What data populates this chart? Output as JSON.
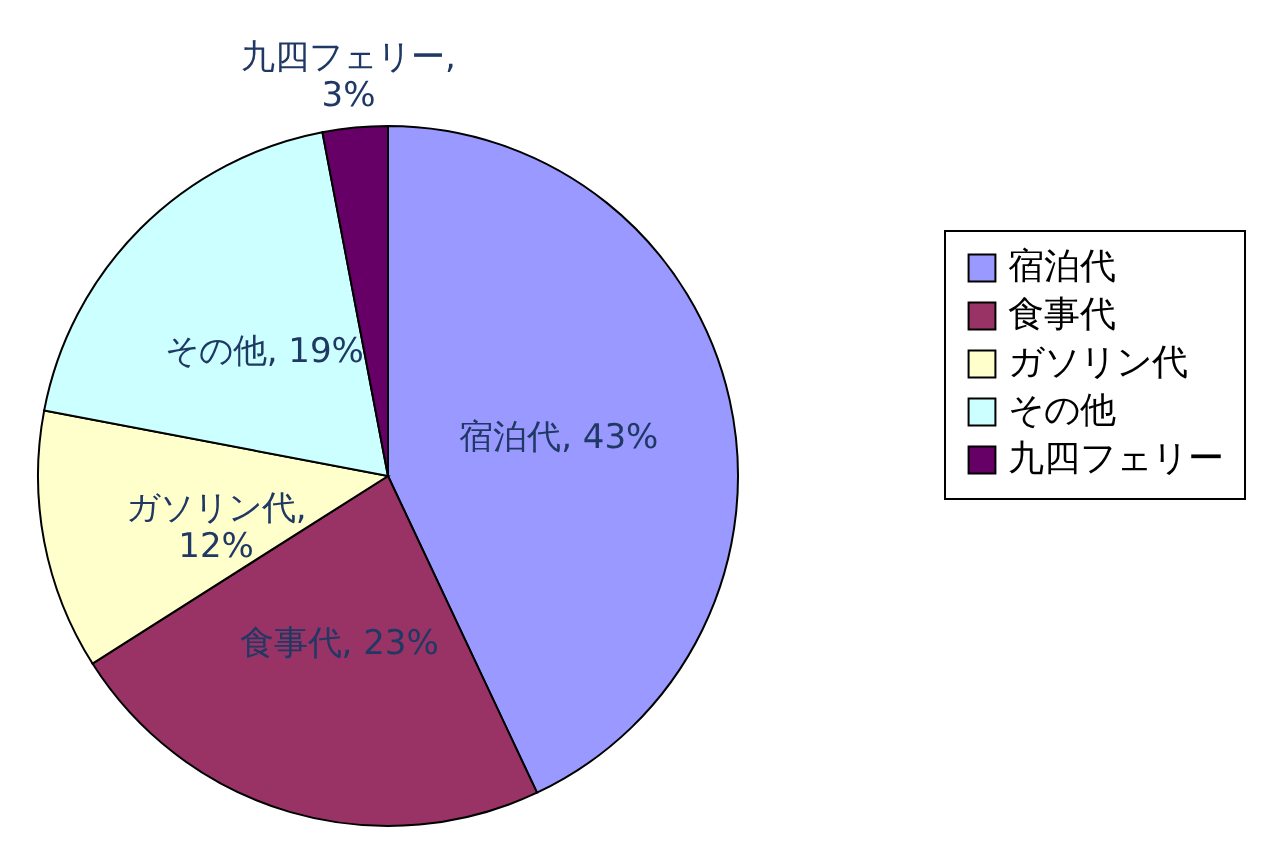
{
  "chart_data": {
    "type": "pie",
    "categories": [
      "宿泊代",
      "食事代",
      "ガソリン代",
      "その他",
      "九四フェリー"
    ],
    "values": [
      43,
      23,
      12,
      19,
      3
    ],
    "colors": [
      "#9999ff",
      "#993366",
      "#ffffcc",
      "#ccffff",
      "#660066"
    ],
    "value_labels": [
      "宿泊代, 43%",
      "食事代, 23%",
      "ガソリン代,\n12%",
      "その他, 19%",
      "九四フェリー,\n3%"
    ],
    "legend": "right"
  }
}
